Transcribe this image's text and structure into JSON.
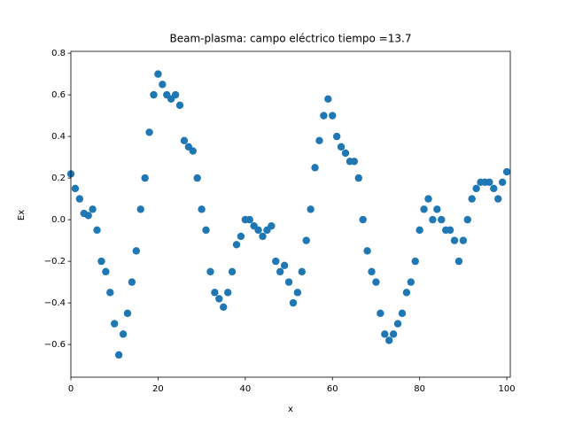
{
  "chart_data": {
    "type": "scatter",
    "title": "Beam-plasma: campo eléctrico  tiempo =13.7",
    "x_label": "x",
    "y_label": "Ex",
    "color": "#1f77b4",
    "x": [
      0,
      1,
      2,
      3,
      4,
      5,
      6,
      7,
      8,
      9,
      10,
      11,
      12,
      13,
      14,
      15,
      16,
      17,
      18,
      19,
      20,
      21,
      22,
      23,
      24,
      25,
      26,
      27,
      28,
      29,
      30,
      31,
      32,
      33,
      34,
      35,
      36,
      37,
      38,
      39,
      40,
      41,
      42,
      43,
      44,
      45,
      46,
      47,
      48,
      49,
      50,
      51,
      52,
      53,
      54,
      55,
      56,
      57,
      58,
      59,
      60,
      61,
      62,
      63,
      64,
      65,
      66,
      67,
      68,
      69,
      70,
      71,
      72,
      73,
      74,
      75,
      76,
      77,
      78,
      79,
      80,
      81,
      82,
      83,
      84,
      85,
      86,
      87,
      88,
      89,
      90,
      91,
      92,
      93,
      94,
      95,
      96,
      97,
      98,
      99,
      100
    ],
    "values": [
      0.22,
      0.15,
      0.1,
      0.03,
      0.02,
      0.05,
      -0.05,
      -0.2,
      -0.25,
      -0.35,
      -0.5,
      -0.65,
      -0.55,
      -0.45,
      -0.3,
      -0.15,
      0.05,
      0.2,
      0.42,
      0.6,
      0.7,
      0.65,
      0.6,
      0.58,
      0.6,
      0.55,
      0.38,
      0.35,
      0.33,
      0.2,
      0.05,
      -0.05,
      -0.25,
      -0.35,
      -0.38,
      -0.42,
      -0.35,
      -0.25,
      -0.12,
      -0.08,
      0,
      0,
      -0.03,
      -0.05,
      -0.08,
      -0.05,
      -0.03,
      -0.2,
      -0.25,
      -0.22,
      -0.3,
      -0.4,
      -0.35,
      -0.25,
      -0.1,
      0.05,
      0.25,
      0.38,
      0.5,
      0.58,
      0.5,
      0.4,
      0.35,
      0.32,
      0.28,
      0.28,
      0.2,
      0,
      -0.15,
      -0.25,
      -0.3,
      -0.45,
      -0.55,
      -0.58,
      -0.55,
      -0.5,
      -0.45,
      -0.35,
      -0.3,
      -0.2,
      -0.05,
      0.05,
      0.1,
      0,
      0.05,
      0,
      -0.05,
      -0.05,
      -0.1,
      -0.2,
      -0.1,
      0,
      0.1,
      0.15,
      0.18,
      0.18,
      0.18,
      0.15,
      0.1,
      0.18,
      0.23
    ],
    "xlim": [
      0,
      100.8
    ],
    "ylim": [
      -0.757,
      0.809
    ],
    "xticks": [
      0,
      20,
      40,
      60,
      80,
      100
    ],
    "yticks": [
      {
        "value": -0.6,
        "label": "−0.6"
      },
      {
        "value": -0.4,
        "label": "−0.4"
      },
      {
        "value": -0.2,
        "label": "−0.2"
      },
      {
        "value": 0,
        "label": "0.0"
      },
      0.2,
      0.4,
      0.6,
      0.8
    ]
  }
}
